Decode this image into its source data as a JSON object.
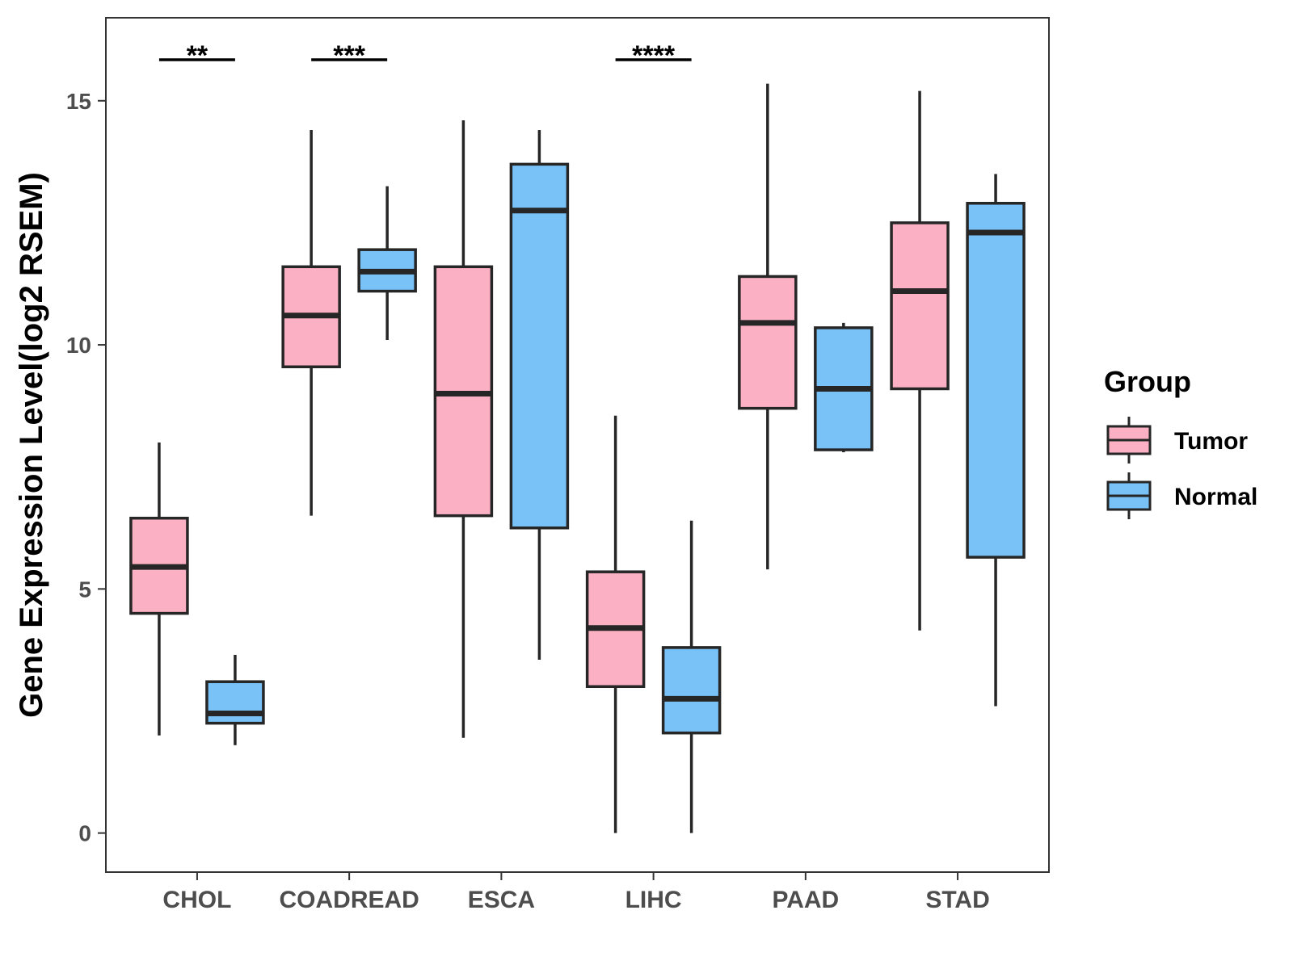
{
  "chart_data": {
    "type": "boxplot",
    "ylabel": "Gene Expression Level(log2 RSEM)",
    "xlabel": "",
    "ylim": [
      -0.8,
      16.7
    ],
    "yticks": [
      0,
      5,
      10,
      15
    ],
    "grid": false,
    "legend": {
      "title": "Group",
      "position": "right"
    },
    "categories": [
      "CHOL",
      "COADREAD",
      "ESCA",
      "LIHC",
      "PAAD",
      "STAD"
    ],
    "series": [
      {
        "name": "Tumor",
        "color": "#FBB1C3",
        "boxes": [
          {
            "min": 2.0,
            "q1": 4.5,
            "median": 5.45,
            "q3": 6.45,
            "max": 8.0
          },
          {
            "min": 6.5,
            "q1": 9.55,
            "median": 10.6,
            "q3": 11.6,
            "max": 14.4
          },
          {
            "min": 1.95,
            "q1": 6.5,
            "median": 9.0,
            "q3": 11.6,
            "max": 14.6
          },
          {
            "min": 0.0,
            "q1": 3.0,
            "median": 4.2,
            "q3": 5.35,
            "max": 8.55
          },
          {
            "min": 5.4,
            "q1": 8.7,
            "median": 10.45,
            "q3": 11.4,
            "max": 15.35
          },
          {
            "min": 4.15,
            "q1": 9.1,
            "median": 11.1,
            "q3": 12.5,
            "max": 15.2
          }
        ]
      },
      {
        "name": "Normal",
        "color": "#78C2F8",
        "boxes": [
          {
            "min": 1.8,
            "q1": 2.25,
            "median": 2.45,
            "q3": 3.1,
            "max": 3.65
          },
          {
            "min": 10.1,
            "q1": 11.1,
            "median": 11.5,
            "q3": 11.95,
            "max": 13.25
          },
          {
            "min": 3.55,
            "q1": 6.25,
            "median": 12.75,
            "q3": 13.7,
            "max": 14.4
          },
          {
            "min": 0.0,
            "q1": 2.05,
            "median": 2.75,
            "q3": 3.8,
            "max": 6.4
          },
          {
            "min": 7.8,
            "q1": 7.85,
            "median": 9.1,
            "q3": 10.35,
            "max": 10.45
          },
          {
            "min": 2.6,
            "q1": 5.65,
            "median": 12.3,
            "q3": 12.9,
            "max": 13.5
          }
        ]
      }
    ],
    "annotations": [
      {
        "category": "CHOL",
        "text": "**"
      },
      {
        "category": "COADREAD",
        "text": "***"
      },
      {
        "category": "LIHC",
        "text": "****"
      }
    ]
  }
}
